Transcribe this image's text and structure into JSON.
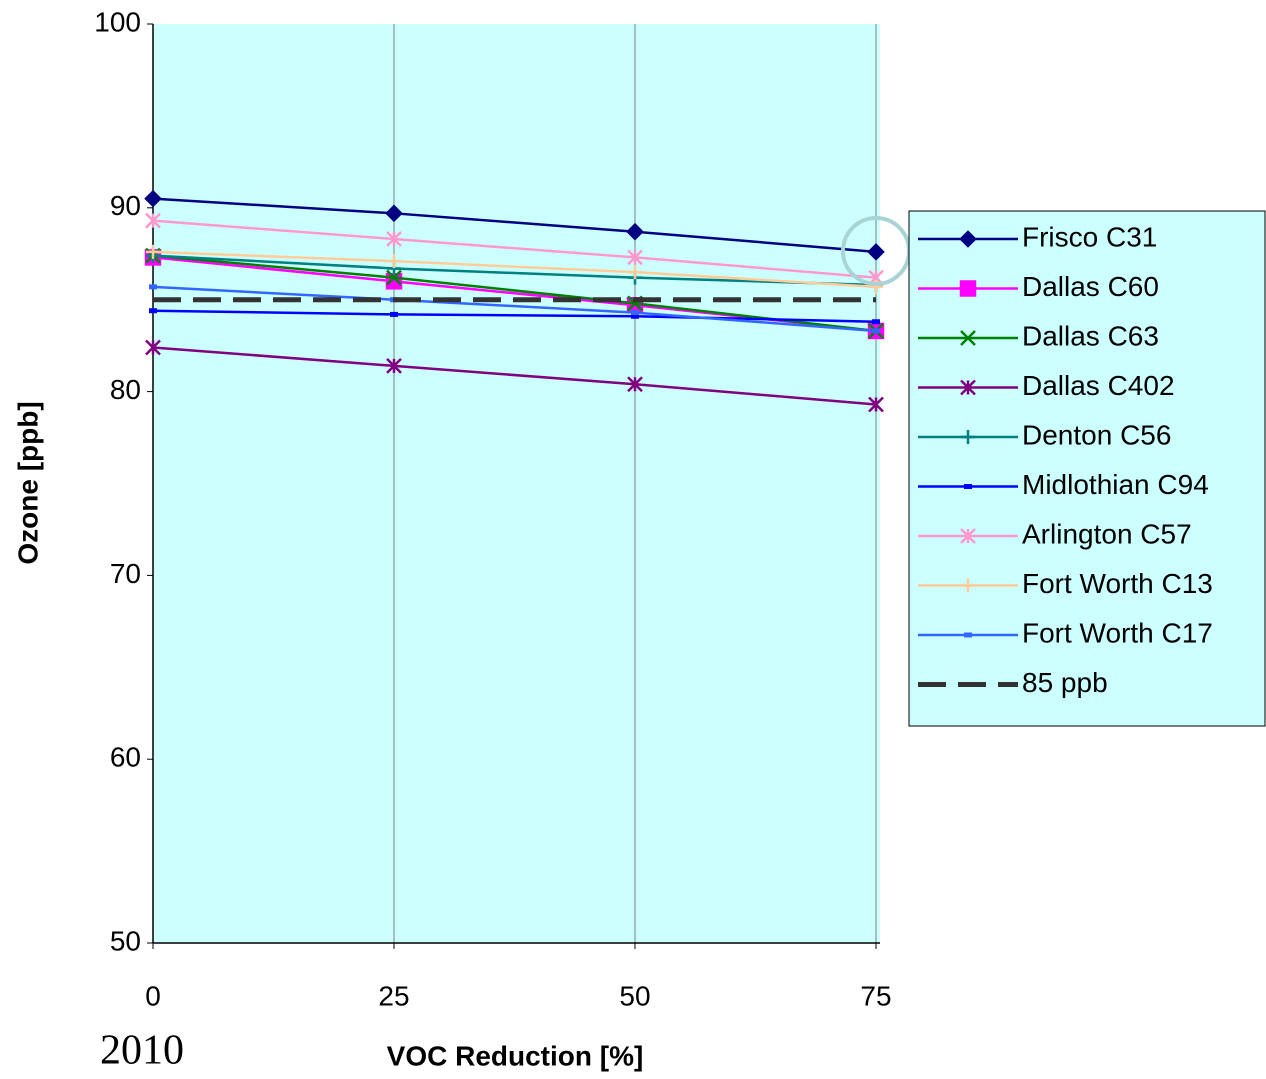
{
  "chart_data": {
    "type": "line",
    "x_label": "VOC Reduction [%]",
    "y_label": "Ozone [ppb]",
    "annotation": "2010",
    "x": [
      0,
      25,
      50,
      75
    ],
    "xlim": [
      0,
      75
    ],
    "xticks": [
      0,
      25,
      50,
      75
    ],
    "ylim": [
      50,
      100
    ],
    "yticks": [
      50,
      60,
      70,
      80,
      90,
      100
    ],
    "xgrid": true,
    "legend": "right",
    "background": "#ccffff",
    "series": [
      {
        "name": "Frisco C31",
        "color": "#000080",
        "marker": "diamond",
        "values": [
          90.5,
          89.7,
          88.7,
          87.6
        ]
      },
      {
        "name": "Dallas C60",
        "color": "#ff00ff",
        "marker": "square",
        "values": [
          87.3,
          86.0,
          84.7,
          83.3
        ]
      },
      {
        "name": "Dallas C63",
        "color": "#008000",
        "marker": "x",
        "values": [
          87.4,
          86.2,
          84.8,
          83.3
        ]
      },
      {
        "name": "Dallas C402",
        "color": "#800080",
        "marker": "star",
        "values": [
          82.4,
          81.4,
          80.4,
          79.3
        ]
      },
      {
        "name": "Denton C56",
        "color": "#008080",
        "marker": "plus",
        "values": [
          87.4,
          86.7,
          86.2,
          85.8
        ]
      },
      {
        "name": "Midlothian C94",
        "color": "#0000ff",
        "marker": "dash",
        "values": [
          84.4,
          84.2,
          84.1,
          83.8
        ]
      },
      {
        "name": "Arlington C57",
        "color": "#ff99cc",
        "marker": "star",
        "values": [
          89.3,
          88.3,
          87.3,
          86.2
        ]
      },
      {
        "name": "Fort Worth C13",
        "color": "#ffcc99",
        "marker": "plus",
        "values": [
          87.6,
          87.1,
          86.5,
          85.7
        ]
      },
      {
        "name": "Fort Worth C17",
        "color": "#3366ff",
        "marker": "dash",
        "values": [
          85.7,
          85.0,
          84.3,
          83.3
        ]
      },
      {
        "name": "85 ppb",
        "color": "#333333",
        "marker": "none",
        "dashed": true,
        "values": [
          85,
          85,
          85,
          85
        ]
      }
    ]
  }
}
